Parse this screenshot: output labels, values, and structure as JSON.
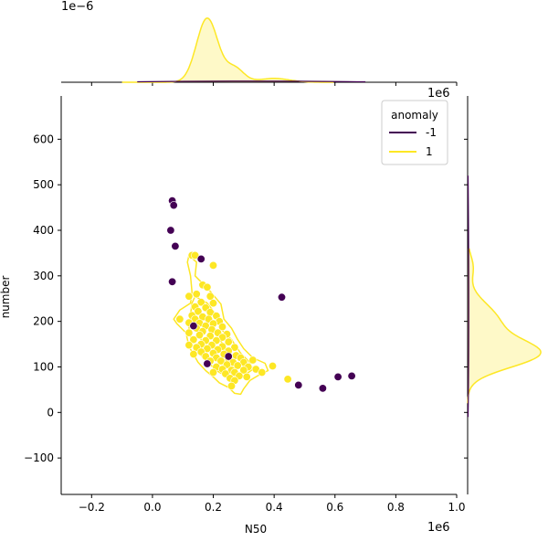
{
  "chart_data": {
    "type": "scatter",
    "title": "",
    "xlabel": "N50",
    "ylabel": "number",
    "x_offset_label": "1e6",
    "y_offset_label": "1e6",
    "top_marginal_offset_label": "1e−6",
    "xlim": [
      -0.3,
      1.0
    ],
    "ylim": [
      -180,
      695
    ],
    "x_ticks": [
      -0.2,
      0.0,
      0.2,
      0.4,
      0.6,
      0.8,
      1.0
    ],
    "x_tick_labels": [
      "−0.2",
      "0.0",
      "0.2",
      "0.4",
      "0.6",
      "0.8",
      "1.0"
    ],
    "y_ticks": [
      -100,
      0,
      100,
      200,
      300,
      400,
      500,
      600
    ],
    "y_tick_labels": [
      "−100",
      "0",
      "100",
      "200",
      "300",
      "400",
      "500",
      "600"
    ],
    "grid": false,
    "legend": {
      "title": "anomaly",
      "placement": "top-right",
      "entries": [
        {
          "label": "-1",
          "color": "#440154"
        },
        {
          "label": "1",
          "color": "#fde725"
        }
      ]
    },
    "series": [
      {
        "name": "-1",
        "color": "#440154",
        "points": [
          [
            0.065,
            465
          ],
          [
            0.07,
            455
          ],
          [
            0.06,
            400
          ],
          [
            0.075,
            365
          ],
          [
            0.065,
            287
          ],
          [
            0.16,
            337
          ],
          [
            0.135,
            190
          ],
          [
            0.25,
            123
          ],
          [
            0.18,
            107
          ],
          [
            0.425,
            253
          ],
          [
            0.48,
            60
          ],
          [
            0.56,
            53
          ],
          [
            0.61,
            78
          ],
          [
            0.655,
            80
          ]
        ]
      },
      {
        "name": "1",
        "color": "#fde725",
        "points": [
          [
            0.13,
            345
          ],
          [
            0.14,
            345
          ],
          [
            0.2,
            323
          ],
          [
            0.165,
            280
          ],
          [
            0.18,
            275
          ],
          [
            0.145,
            260
          ],
          [
            0.19,
            255
          ],
          [
            0.12,
            255
          ],
          [
            0.16,
            242
          ],
          [
            0.2,
            240
          ],
          [
            0.175,
            230
          ],
          [
            0.14,
            232
          ],
          [
            0.15,
            222
          ],
          [
            0.19,
            220
          ],
          [
            0.13,
            213
          ],
          [
            0.21,
            212
          ],
          [
            0.165,
            210
          ],
          [
            0.185,
            205
          ],
          [
            0.14,
            205
          ],
          [
            0.22,
            200
          ],
          [
            0.09,
            205
          ],
          [
            0.12,
            197
          ],
          [
            0.155,
            196
          ],
          [
            0.2,
            195
          ],
          [
            0.175,
            190
          ],
          [
            0.23,
            188
          ],
          [
            0.145,
            185
          ],
          [
            0.195,
            182
          ],
          [
            0.165,
            178
          ],
          [
            0.215,
            175
          ],
          [
            0.12,
            175
          ],
          [
            0.245,
            172
          ],
          [
            0.155,
            170
          ],
          [
            0.19,
            168
          ],
          [
            0.23,
            165
          ],
          [
            0.135,
            160
          ],
          [
            0.175,
            158
          ],
          [
            0.21,
            158
          ],
          [
            0.25,
            155
          ],
          [
            0.16,
            150
          ],
          [
            0.195,
            148
          ],
          [
            0.12,
            148
          ],
          [
            0.23,
            145
          ],
          [
            0.145,
            143
          ],
          [
            0.27,
            143
          ],
          [
            0.18,
            140
          ],
          [
            0.215,
            138
          ],
          [
            0.25,
            135
          ],
          [
            0.16,
            133
          ],
          [
            0.2,
            130
          ],
          [
            0.235,
            128
          ],
          [
            0.135,
            128
          ],
          [
            0.275,
            125
          ],
          [
            0.175,
            123
          ],
          [
            0.21,
            120
          ],
          [
            0.29,
            120
          ],
          [
            0.25,
            118
          ],
          [
            0.225,
            113
          ],
          [
            0.19,
            113
          ],
          [
            0.265,
            110
          ],
          [
            0.3,
            110
          ],
          [
            0.33,
            115
          ],
          [
            0.245,
            105
          ],
          [
            0.28,
            103
          ],
          [
            0.21,
            100
          ],
          [
            0.315,
            100
          ],
          [
            0.23,
            95
          ],
          [
            0.26,
            93
          ],
          [
            0.3,
            93
          ],
          [
            0.34,
            95
          ],
          [
            0.2,
            88
          ],
          [
            0.27,
            88
          ],
          [
            0.36,
            88
          ],
          [
            0.24,
            85
          ],
          [
            0.285,
            80
          ],
          [
            0.255,
            75
          ],
          [
            0.31,
            78
          ],
          [
            0.395,
            102
          ],
          [
            0.445,
            73
          ],
          [
            0.27,
            70
          ],
          [
            0.26,
            58
          ]
        ]
      }
    ],
    "kde_contours_series": "1",
    "marginal_x": {
      "series": [
        {
          "name": "1",
          "color": "#fde725",
          "peak_x": 0.18
        },
        {
          "name": "-1",
          "color": "#440154"
        }
      ]
    },
    "marginal_y": {
      "series": [
        {
          "name": "1",
          "color": "#fde725",
          "peak_y": 128
        },
        {
          "name": "-1",
          "color": "#440154"
        }
      ]
    }
  }
}
